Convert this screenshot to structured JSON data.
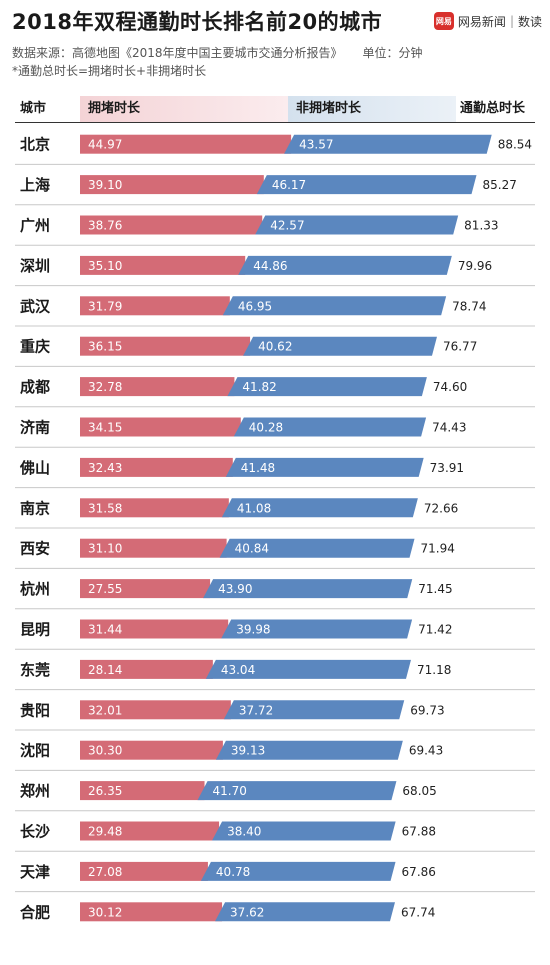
{
  "header": {
    "title": "2018年双程通勤时长排名前20的城市",
    "brand_logo_text": "网易",
    "brand_name": "网易新闻",
    "brand_sub": "数读",
    "source": "数据来源：高德地图《2018年度中国主要城市交通分析报告》",
    "unit": "单位：分钟",
    "note": "*通勤总时长=拥堵时长+非拥堵时长"
  },
  "columns": {
    "city": "城市",
    "congested": "拥堵时长",
    "free": "非拥堵时长",
    "total": "通勤总时长"
  },
  "colors": {
    "congested": "#d46b76",
    "free": "#5b87bf",
    "divider": "#c8c8c8"
  },
  "chart_data": {
    "type": "bar",
    "orientation": "horizontal",
    "stacked": true,
    "title": "2018年双程通勤时长排名前20的城市",
    "categories": [
      "北京",
      "上海",
      "广州",
      "深圳",
      "武汉",
      "重庆",
      "成都",
      "济南",
      "佛山",
      "南京",
      "西安",
      "杭州",
      "昆明",
      "东莞",
      "贵阳",
      "沈阳",
      "郑州",
      "长沙",
      "天津",
      "合肥"
    ],
    "series": [
      {
        "name": "拥堵时长",
        "values": [
          44.97,
          39.1,
          38.76,
          35.1,
          31.79,
          36.15,
          32.78,
          34.15,
          32.43,
          31.58,
          31.1,
          27.55,
          31.44,
          28.14,
          32.01,
          30.3,
          26.35,
          29.48,
          27.08,
          30.12
        ]
      },
      {
        "name": "非拥堵时长",
        "values": [
          43.57,
          46.17,
          42.57,
          44.86,
          46.95,
          40.62,
          41.82,
          40.28,
          41.48,
          41.08,
          40.84,
          43.9,
          39.98,
          43.04,
          37.72,
          39.13,
          41.7,
          38.4,
          40.78,
          37.62
        ]
      }
    ],
    "totals_label": "通勤总时长",
    "totals": [
      88.54,
      85.27,
      81.33,
      79.96,
      78.74,
      76.77,
      74.6,
      74.43,
      73.91,
      72.66,
      71.94,
      71.45,
      71.42,
      71.18,
      69.73,
      69.43,
      68.05,
      67.88,
      67.86,
      67.74
    ],
    "unit": "分钟",
    "legend": "top",
    "grid": false
  }
}
